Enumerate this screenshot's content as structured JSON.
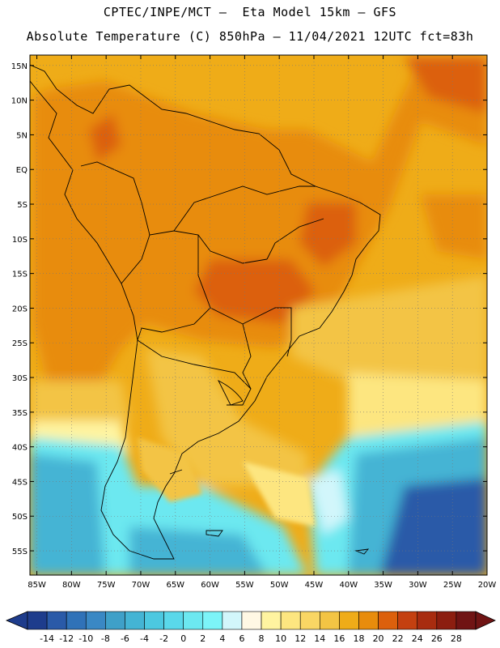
{
  "header": {
    "line1": "CPTEC/INPE/MCT –  Eta Model 15km – GFS",
    "line2": "Absolute Temperature (C) 850hPa – 11/04/2021 12UTC fct=83h"
  },
  "map": {
    "lon_range": [
      -86,
      -20
    ],
    "lat_range": [
      -58.5,
      16.5
    ],
    "lat_ticks": [
      "15N",
      "10N",
      "5N",
      "EQ",
      "5S",
      "10S",
      "15S",
      "20S",
      "25S",
      "30S",
      "35S",
      "40S",
      "45S",
      "50S",
      "55S"
    ],
    "lat_values": [
      15,
      10,
      5,
      0,
      -5,
      -10,
      -15,
      -20,
      -25,
      -30,
      -35,
      -40,
      -45,
      -50,
      -55
    ],
    "lon_ticks": [
      "85W",
      "80W",
      "75W",
      "70W",
      "65W",
      "60W",
      "55W",
      "50W",
      "45W",
      "40W",
      "35W",
      "30W",
      "25W",
      "20W"
    ],
    "lon_values": [
      -85,
      -80,
      -75,
      -70,
      -65,
      -60,
      -55,
      -50,
      -45,
      -40,
      -35,
      -30,
      -25,
      -20
    ],
    "grid": true
  },
  "colorbar": {
    "labels": [
      "-14",
      "-12",
      "-10",
      "-8",
      "-6",
      "-4",
      "-2",
      "0",
      "2",
      "4",
      "6",
      "8",
      "10",
      "12",
      "14",
      "16",
      "18",
      "20",
      "22",
      "24",
      "26",
      "28"
    ],
    "colors": [
      "#1e3c8c",
      "#2a5aa8",
      "#3072b8",
      "#3a88c4",
      "#3fa0c8",
      "#44b4d4",
      "#4cc8e0",
      "#5ad8ea",
      "#6ce8f0",
      "#7cf4f8",
      "#d2f6fb",
      "#fff8e4",
      "#fff4a0",
      "#fde680",
      "#f9d664",
      "#f3c444",
      "#efac18",
      "#e88c0c",
      "#dc600c",
      "#c44010",
      "#a82c10",
      "#8c1e10",
      "#701414"
    ]
  }
}
